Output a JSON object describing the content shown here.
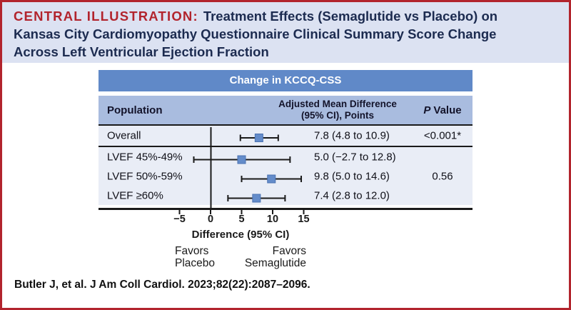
{
  "title": {
    "kicker": "CENTRAL ILLUSTRATION:",
    "text": "Treatment Effects (Semaglutide vs Placebo) on\nKansas City Cardiomyopathy Questionnaire Clinical Summary Score Change\nAcross Left Ventricular Ejection Fraction"
  },
  "table": {
    "header": "Change in KCCQ-CSS",
    "columns": {
      "population": "Population",
      "amd_line1": "Adjusted Mean Difference",
      "amd_line2": "(95% CI), Points",
      "p_italic": "P",
      "p_rest": "Value"
    }
  },
  "chart_data": {
    "type": "forest",
    "title": "Change in KCCQ-CSS",
    "xlabel": "Difference (95% CI)",
    "x_ticks": [
      -5,
      0,
      5,
      10,
      15
    ],
    "x_tick_labels": [
      "−5",
      "0",
      "5",
      "10",
      "15"
    ],
    "xlim": [
      -7.5,
      17.5
    ],
    "zero_line": 0,
    "favors_left": "Favors\nPlacebo",
    "favors_right": "Favors\nSemaglutide",
    "rows": [
      {
        "label": "Overall",
        "estimate": 7.8,
        "ci_low": 4.8,
        "ci_high": 10.9,
        "value_text": "7.8 (4.8 to 10.9)",
        "p_value": "<0.001*"
      },
      {
        "label": "LVEF 45%-49%",
        "estimate": 5.0,
        "ci_low": -2.7,
        "ci_high": 12.8,
        "value_text": "5.0 (−2.7 to 12.8)",
        "p_value": ""
      },
      {
        "label": "LVEF 50%-59%",
        "estimate": 9.8,
        "ci_low": 5.0,
        "ci_high": 14.6,
        "value_text": "9.8 (5.0 to 14.6)",
        "p_value": "0.56"
      },
      {
        "label": "LVEF ≥60%",
        "estimate": 7.4,
        "ci_low": 2.8,
        "ci_high": 12.0,
        "value_text": "7.4 (2.8 to 12.0)",
        "p_value": ""
      }
    ]
  },
  "citation": "Butler J, et al. J Am Coll Cardiol. 2023;82(22):2087–2096.",
  "colors": {
    "accent_red": "#b2242d",
    "title_navy": "#1c2b50",
    "title_bg": "#dce2f2",
    "header_blue": "#6089c8",
    "subheader_blue": "#a9bcdf",
    "row_bg": "#e9edf6",
    "marker_blue": "#648cca",
    "marker_border": "#4a72b2",
    "line_black": "#1a1a1a"
  }
}
